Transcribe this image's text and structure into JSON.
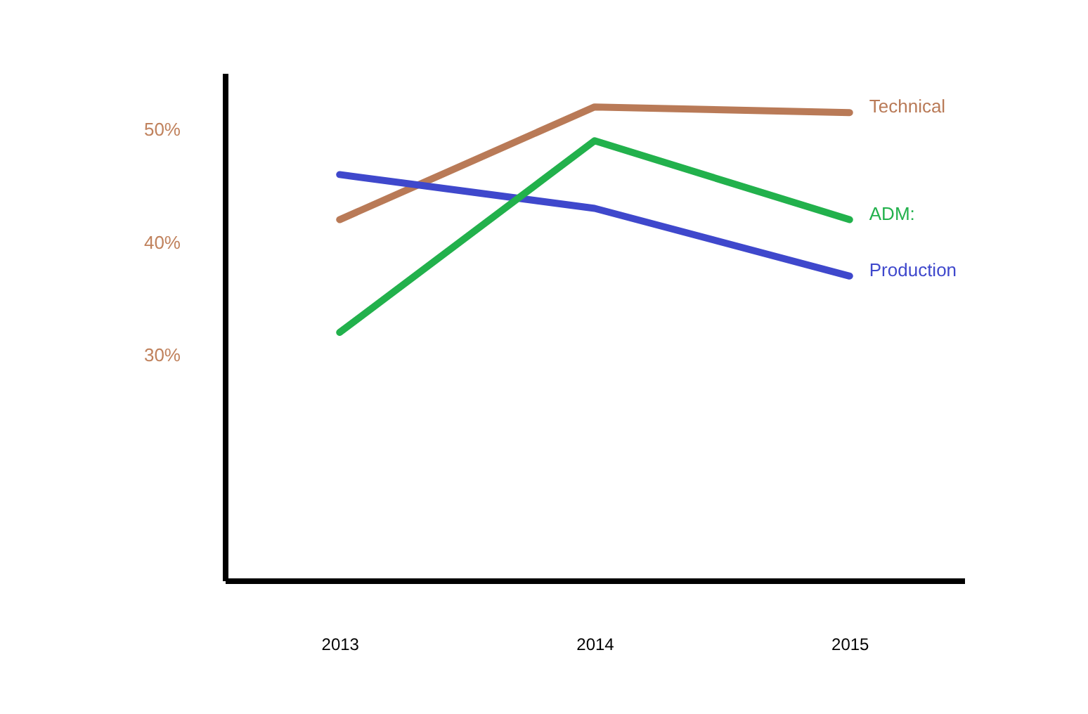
{
  "chart_data": {
    "type": "line",
    "categories": [
      "2013",
      "2014",
      "2015"
    ],
    "series": [
      {
        "name": "Technical",
        "color": "#b97a57",
        "values": [
          42,
          52,
          51.5
        ]
      },
      {
        "name": "Production",
        "color": "#3f48cc",
        "values": [
          46,
          43,
          37
        ]
      },
      {
        "name": "ADM:",
        "color": "#22b14c",
        "values": [
          32,
          49,
          42
        ]
      }
    ],
    "ylim": [
      10,
      55
    ],
    "yticks": [
      {
        "value": 30,
        "label": "30%"
      },
      {
        "value": 40,
        "label": "40%"
      },
      {
        "value": 50,
        "label": "50%"
      }
    ],
    "grid": false
  }
}
